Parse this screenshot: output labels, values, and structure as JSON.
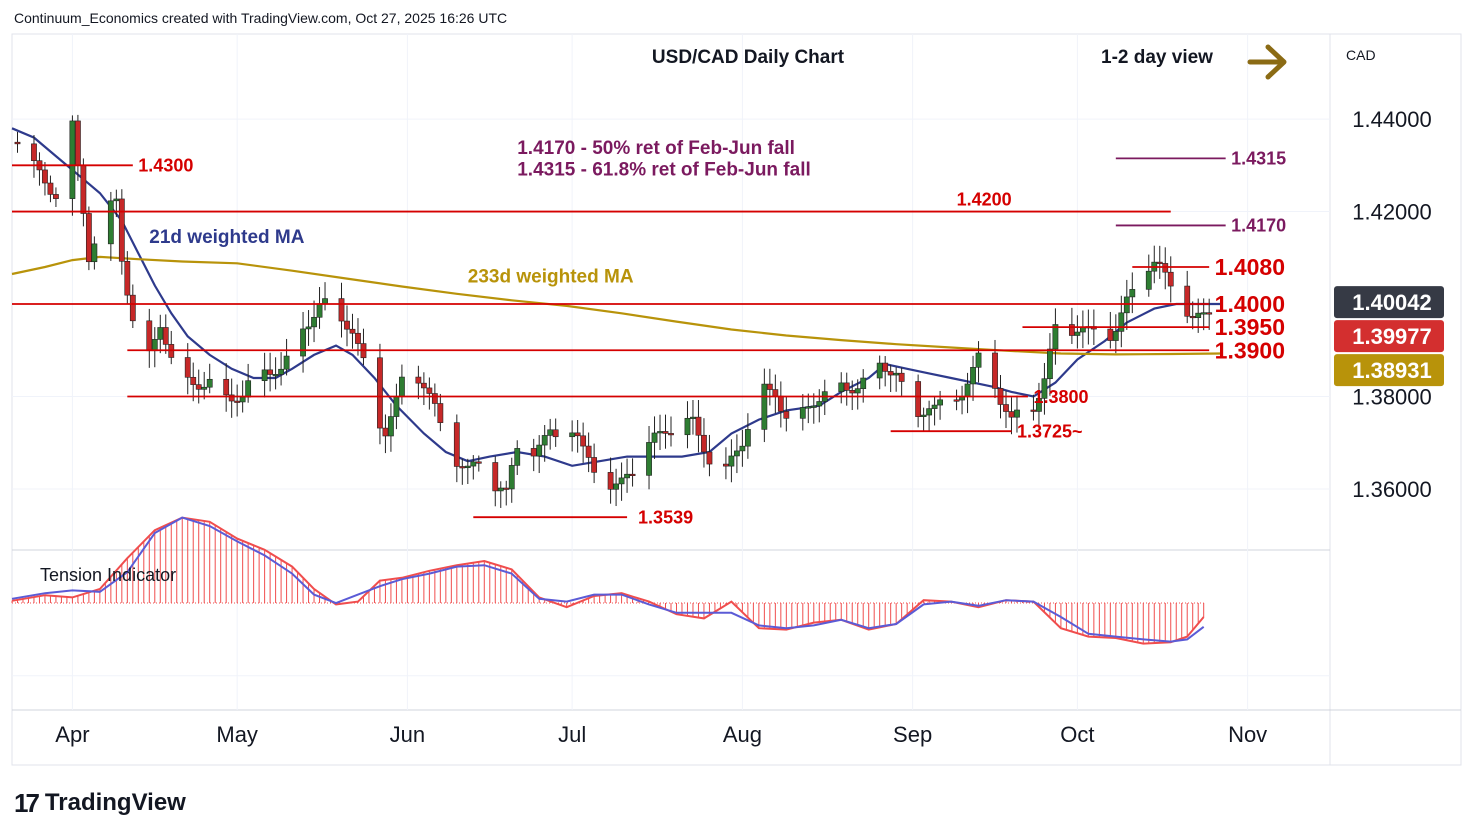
{
  "header": {
    "caption": "Continuum_Economics created with TradingView.com, Oct 27, 2025 16:26 UTC"
  },
  "footer": {
    "logo_mark": "17",
    "brand": "TradingView"
  },
  "colors": {
    "support_resistance": "#d50000",
    "fib": "#7b1a5f",
    "ma21": "#2e3a8c",
    "ma233": "#b8930a",
    "bull": "#2e7d32",
    "bear": "#c62828",
    "price_up": "#d32f2f",
    "arrow": "#8b6b14",
    "tension_red": "#f04d4d",
    "tension_blue": "#5b5bd6"
  },
  "chart_data": {
    "type": "candlestick",
    "title": "USD/CAD Daily Chart",
    "view_label": "1-2 day view",
    "currency_label": "CAD",
    "y_range": [
      1.3468,
      1.4584
    ],
    "y_ticks": [
      {
        "value": 1.44,
        "label": "1.44000"
      },
      {
        "value": 1.42,
        "label": "1.42000"
      },
      {
        "value": 1.38,
        "label": "1.38000"
      },
      {
        "value": 1.36,
        "label": "1.36000"
      }
    ],
    "x_ticks": [
      {
        "label": "Apr",
        "day": 0
      },
      {
        "label": "May",
        "day": 30
      },
      {
        "label": "Jun",
        "day": 61
      },
      {
        "label": "Jul",
        "day": 91
      },
      {
        "label": "Aug",
        "day": 122
      },
      {
        "label": "Sep",
        "day": 153
      },
      {
        "label": "Oct",
        "day": 183
      },
      {
        "label": "Nov",
        "day": 214
      }
    ],
    "x_domain_days": [
      -11,
      229
    ],
    "last_day": 209,
    "current_price_tags": [
      {
        "label": "1.40042",
        "value": 1.40042,
        "style": "dark"
      },
      {
        "label": "1.39977",
        "value": 1.39977,
        "style": "red"
      },
      {
        "label": "1.38931",
        "value": 1.38931,
        "style": "gold"
      }
    ],
    "levels": [
      {
        "value": 1.43,
        "label": "1.4300",
        "from_day": -11,
        "to_day": 11,
        "kind": "support_resistance",
        "label_day": 12,
        "label_side": "right"
      },
      {
        "value": 1.42,
        "label": "1.4200",
        "from_day": -11,
        "to_day": 200,
        "kind": "support_resistance",
        "label_day": 161,
        "label_side": "above"
      },
      {
        "value": 1.4315,
        "label": "1.4315",
        "from_day": 190,
        "to_day": 210,
        "kind": "fib",
        "label_day": 211,
        "label_side": "right"
      },
      {
        "value": 1.417,
        "label": "1.4170",
        "from_day": 190,
        "to_day": 210,
        "kind": "fib",
        "label_day": 211,
        "label_side": "right"
      },
      {
        "value": 1.408,
        "label": "1.4080",
        "from_day": 193,
        "to_day": 207,
        "kind": "support_resistance_big",
        "label_day": 208,
        "label_side": "right"
      },
      {
        "value": 1.4,
        "label": "1.4000",
        "from_day": -11,
        "to_day": 207,
        "kind": "support_resistance_big",
        "label_day": 208,
        "label_side": "right"
      },
      {
        "value": 1.395,
        "label": "1.3950",
        "from_day": 173,
        "to_day": 207,
        "kind": "support_resistance_big",
        "label_day": 208,
        "label_side": "right"
      },
      {
        "value": 1.39,
        "label": "1.3900",
        "from_day": 10,
        "to_day": 207,
        "kind": "support_resistance_big",
        "label_day": 208,
        "label_side": "right"
      },
      {
        "value": 1.38,
        "label": "1.3800",
        "from_day": 10,
        "to_day": 174,
        "kind": "support_resistance",
        "label_day": 175,
        "label_side": "right"
      },
      {
        "value": 1.3725,
        "label": "1.3725~",
        "from_day": 149,
        "to_day": 171,
        "kind": "support_resistance",
        "label_day": 172,
        "label_side": "right"
      },
      {
        "value": 1.3539,
        "label": "1.3539",
        "from_day": 73,
        "to_day": 101,
        "kind": "support_resistance",
        "label_day": 103,
        "label_side": "right"
      }
    ],
    "annotations": [
      {
        "text": "1.4170 - 50% ret of Feb-Jun fall",
        "kind": "fib",
        "day": 81,
        "value": 1.4324
      },
      {
        "text": "1.4315 - 61.8% ret of Feb-Jun fall",
        "kind": "fib",
        "day": 81,
        "value": 1.4278
      },
      {
        "text": "21d weighted MA",
        "kind": "ma21",
        "day": 14,
        "value": 1.4132
      },
      {
        "text": "233d weighted MA",
        "kind": "ma233",
        "day": 72,
        "value": 1.4047
      }
    ],
    "moving_averages": [
      {
        "name": "21d weighted MA",
        "color_key": "ma21",
        "points": [
          [
            -11,
            1.438
          ],
          [
            -7,
            1.436
          ],
          [
            -3,
            1.432
          ],
          [
            2,
            1.427
          ],
          [
            5,
            1.424
          ],
          [
            9,
            1.418
          ],
          [
            12,
            1.411
          ],
          [
            15,
            1.404
          ],
          [
            18,
            1.398
          ],
          [
            21,
            1.393
          ],
          [
            25,
            1.389
          ],
          [
            29,
            1.386
          ],
          [
            33,
            1.384
          ],
          [
            37,
            1.384
          ],
          [
            40,
            1.386
          ],
          [
            44,
            1.389
          ],
          [
            48,
            1.391
          ],
          [
            51,
            1.389
          ],
          [
            55,
            1.384
          ],
          [
            59,
            1.378
          ],
          [
            64,
            1.372
          ],
          [
            68,
            1.368
          ],
          [
            72,
            1.366
          ],
          [
            76,
            1.367
          ],
          [
            81,
            1.368
          ],
          [
            86,
            1.367
          ],
          [
            91,
            1.365
          ],
          [
            96,
            1.366
          ],
          [
            101,
            1.367
          ],
          [
            106,
            1.367
          ],
          [
            111,
            1.367
          ],
          [
            116,
            1.368
          ],
          [
            120,
            1.372
          ],
          [
            125,
            1.375
          ],
          [
            130,
            1.377
          ],
          [
            136,
            1.378
          ],
          [
            140,
            1.381
          ],
          [
            145,
            1.384
          ],
          [
            148,
            1.387
          ],
          [
            152,
            1.386
          ],
          [
            156,
            1.385
          ],
          [
            160,
            1.384
          ],
          [
            164,
            1.383
          ],
          [
            168,
            1.382
          ],
          [
            171,
            1.381
          ],
          [
            175,
            1.38
          ],
          [
            179,
            1.383
          ],
          [
            183,
            1.388
          ],
          [
            188,
            1.392
          ],
          [
            192,
            1.396
          ],
          [
            197,
            1.399
          ],
          [
            201,
            1.4
          ],
          [
            205,
            1.4
          ],
          [
            209,
            1.4
          ]
        ]
      },
      {
        "name": "233d weighted MA",
        "color_key": "ma233",
        "points": [
          [
            -11,
            1.4065
          ],
          [
            -5,
            1.408
          ],
          [
            0,
            1.4095
          ],
          [
            5,
            1.4102
          ],
          [
            12,
            1.4097
          ],
          [
            20,
            1.4092
          ],
          [
            30,
            1.4088
          ],
          [
            40,
            1.4072
          ],
          [
            50,
            1.4055
          ],
          [
            60,
            1.4038
          ],
          [
            70,
            1.4022
          ],
          [
            80,
            1.4008
          ],
          [
            90,
            1.3996
          ],
          [
            100,
            1.398
          ],
          [
            110,
            1.3962
          ],
          [
            120,
            1.3945
          ],
          [
            130,
            1.3932
          ],
          [
            140,
            1.3922
          ],
          [
            150,
            1.3913
          ],
          [
            160,
            1.3906
          ],
          [
            170,
            1.3899
          ],
          [
            180,
            1.3893
          ],
          [
            190,
            1.3891
          ],
          [
            200,
            1.3892
          ],
          [
            209,
            1.3893
          ]
        ]
      }
    ],
    "candles_ohlc_anchors": [
      [
        -11,
        1.435
      ],
      [
        -7,
        1.43
      ],
      [
        -3,
        1.427
      ],
      [
        -1,
        1.435
      ],
      [
        0,
        1.438
      ],
      [
        2,
        1.418
      ],
      [
        3,
        1.408
      ],
      [
        5,
        1.415
      ],
      [
        8,
        1.423
      ],
      [
        9,
        1.412
      ],
      [
        11,
        1.4
      ],
      [
        13,
        1.387
      ],
      [
        16,
        1.395
      ],
      [
        18,
        1.386
      ],
      [
        21,
        1.382
      ],
      [
        25,
        1.386
      ],
      [
        28,
        1.382
      ],
      [
        31,
        1.379
      ],
      [
        35,
        1.384
      ],
      [
        38,
        1.387
      ],
      [
        40,
        1.392
      ],
      [
        42,
        1.398
      ],
      [
        45,
        1.399
      ],
      [
        48,
        1.396
      ],
      [
        51,
        1.393
      ],
      [
        53,
        1.388
      ],
      [
        55,
        1.38
      ],
      [
        57,
        1.375
      ],
      [
        59,
        1.379
      ],
      [
        61,
        1.385
      ],
      [
        64,
        1.38
      ],
      [
        66,
        1.376
      ],
      [
        68,
        1.371
      ],
      [
        70,
        1.369
      ],
      [
        72,
        1.366
      ],
      [
        75,
        1.365
      ],
      [
        77,
        1.358
      ],
      [
        79,
        1.356
      ],
      [
        81,
        1.368
      ],
      [
        84,
        1.37
      ],
      [
        87,
        1.374
      ],
      [
        91,
        1.37
      ],
      [
        93,
        1.365
      ],
      [
        95,
        1.363
      ],
      [
        97,
        1.36
      ],
      [
        99,
        1.362
      ],
      [
        101,
        1.366
      ],
      [
        104,
        1.367
      ],
      [
        107,
        1.369
      ],
      [
        110,
        1.372
      ],
      [
        113,
        1.376
      ],
      [
        115,
        1.372
      ],
      [
        117,
        1.367
      ],
      [
        119,
        1.363
      ],
      [
        122,
        1.368
      ],
      [
        124,
        1.375
      ],
      [
        126,
        1.381
      ],
      [
        128,
        1.383
      ],
      [
        130,
        1.379
      ],
      [
        133,
        1.377
      ],
      [
        136,
        1.378
      ],
      [
        139,
        1.38
      ],
      [
        141,
        1.382
      ],
      [
        143,
        1.385
      ],
      [
        145,
        1.388
      ],
      [
        146,
        1.39
      ],
      [
        148,
        1.387
      ],
      [
        150,
        1.384
      ],
      [
        152,
        1.376
      ],
      [
        154,
        1.374
      ],
      [
        156,
        1.379
      ],
      [
        159,
        1.381
      ],
      [
        162,
        1.383
      ],
      [
        165,
        1.386
      ],
      [
        167,
        1.383
      ],
      [
        169,
        1.378
      ],
      [
        171,
        1.375
      ],
      [
        173,
        1.379
      ],
      [
        175,
        1.381
      ],
      [
        177,
        1.385
      ],
      [
        179,
        1.393
      ],
      [
        182,
        1.392
      ],
      [
        185,
        1.393
      ],
      [
        187,
        1.395
      ],
      [
        190,
        1.397
      ],
      [
        192,
        1.401
      ],
      [
        195,
        1.405
      ],
      [
        197,
        1.406
      ],
      [
        199,
        1.404
      ],
      [
        202,
        1.402
      ],
      [
        204,
        1.399
      ],
      [
        206,
        1.399
      ],
      [
        209,
        1.3998
      ]
    ],
    "tension_indicator": {
      "label": "Tension Indicator",
      "red_line": [
        [
          -11,
          0.08
        ],
        [
          -5,
          0.28
        ],
        [
          0,
          0.2
        ],
        [
          5,
          0.5
        ],
        [
          10,
          1.6
        ],
        [
          15,
          2.6
        ],
        [
          20,
          3.05
        ],
        [
          25,
          2.9
        ],
        [
          30,
          2.3
        ],
        [
          35,
          1.9
        ],
        [
          40,
          1.3
        ],
        [
          44,
          0.5
        ],
        [
          48,
          -0.05
        ],
        [
          52,
          0.05
        ],
        [
          56,
          0.8
        ],
        [
          60,
          0.9
        ],
        [
          65,
          1.15
        ],
        [
          70,
          1.35
        ],
        [
          75,
          1.5
        ],
        [
          80,
          1.2
        ],
        [
          85,
          0.2
        ],
        [
          90,
          -0.15
        ],
        [
          95,
          0.25
        ],
        [
          100,
          0.35
        ],
        [
          105,
          0.05
        ],
        [
          110,
          -0.4
        ],
        [
          115,
          -0.55
        ],
        [
          120,
          0.05
        ],
        [
          125,
          -0.9
        ],
        [
          130,
          -0.95
        ],
        [
          135,
          -0.7
        ],
        [
          140,
          -0.6
        ],
        [
          145,
          -0.95
        ],
        [
          150,
          -0.75
        ],
        [
          155,
          0.1
        ],
        [
          160,
          0.05
        ],
        [
          165,
          -0.15
        ],
        [
          170,
          0.1
        ],
        [
          175,
          0.05
        ],
        [
          180,
          -0.9
        ],
        [
          185,
          -1.2
        ],
        [
          190,
          -1.25
        ],
        [
          195,
          -1.45
        ],
        [
          200,
          -1.4
        ],
        [
          203,
          -1.2
        ],
        [
          206,
          -0.5
        ]
      ],
      "blue_line": [
        [
          -11,
          0.15
        ],
        [
          -5,
          0.35
        ],
        [
          0,
          0.45
        ],
        [
          5,
          0.4
        ],
        [
          10,
          1.1
        ],
        [
          15,
          2.5
        ],
        [
          20,
          3.05
        ],
        [
          25,
          2.75
        ],
        [
          30,
          2.2
        ],
        [
          35,
          1.7
        ],
        [
          40,
          1.05
        ],
        [
          44,
          0.3
        ],
        [
          48,
          0.0
        ],
        [
          52,
          0.3
        ],
        [
          56,
          0.6
        ],
        [
          60,
          0.85
        ],
        [
          65,
          1.05
        ],
        [
          70,
          1.3
        ],
        [
          75,
          1.35
        ],
        [
          80,
          1.05
        ],
        [
          85,
          0.15
        ],
        [
          90,
          0.05
        ],
        [
          95,
          0.3
        ],
        [
          100,
          0.3
        ],
        [
          105,
          -0.05
        ],
        [
          110,
          -0.35
        ],
        [
          115,
          -0.35
        ],
        [
          120,
          -0.35
        ],
        [
          125,
          -0.8
        ],
        [
          130,
          -0.9
        ],
        [
          135,
          -0.8
        ],
        [
          140,
          -0.6
        ],
        [
          145,
          -0.9
        ],
        [
          150,
          -0.75
        ],
        [
          155,
          -0.05
        ],
        [
          160,
          0.05
        ],
        [
          165,
          -0.1
        ],
        [
          170,
          0.1
        ],
        [
          175,
          0.05
        ],
        [
          180,
          -0.5
        ],
        [
          185,
          -1.1
        ],
        [
          190,
          -1.2
        ],
        [
          195,
          -1.3
        ],
        [
          200,
          -1.38
        ],
        [
          203,
          -1.3
        ],
        [
          206,
          -0.85
        ]
      ]
    }
  }
}
